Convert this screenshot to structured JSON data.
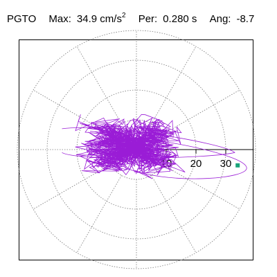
{
  "header": {
    "name": "PGTO",
    "max_label": "Max:",
    "max_value": "34.9",
    "max_unit": "cm/s",
    "max_exp": "2",
    "per_label": "Per:",
    "per_value": "0.280 s",
    "ang_label": "Ang:",
    "ang_value": "-8.7"
  },
  "chart_data": {
    "type": "scatter",
    "description_kind": "polar particle-motion trace",
    "radial_ticks": [
      10,
      20,
      30
    ],
    "radial_tick_labels": [
      "10",
      "20",
      "30"
    ],
    "rings": [
      10,
      20,
      30,
      40
    ],
    "spokes_deg": [
      0,
      30,
      60,
      90,
      120,
      150,
      180,
      210,
      240,
      270,
      300,
      330
    ],
    "trace_color": "#9a1cd6",
    "marker_color": "#1aa37a",
    "end_point": {
      "x": 34.0,
      "y": -5.3
    },
    "max_value": 34.9,
    "angle_deg": -8.7
  }
}
